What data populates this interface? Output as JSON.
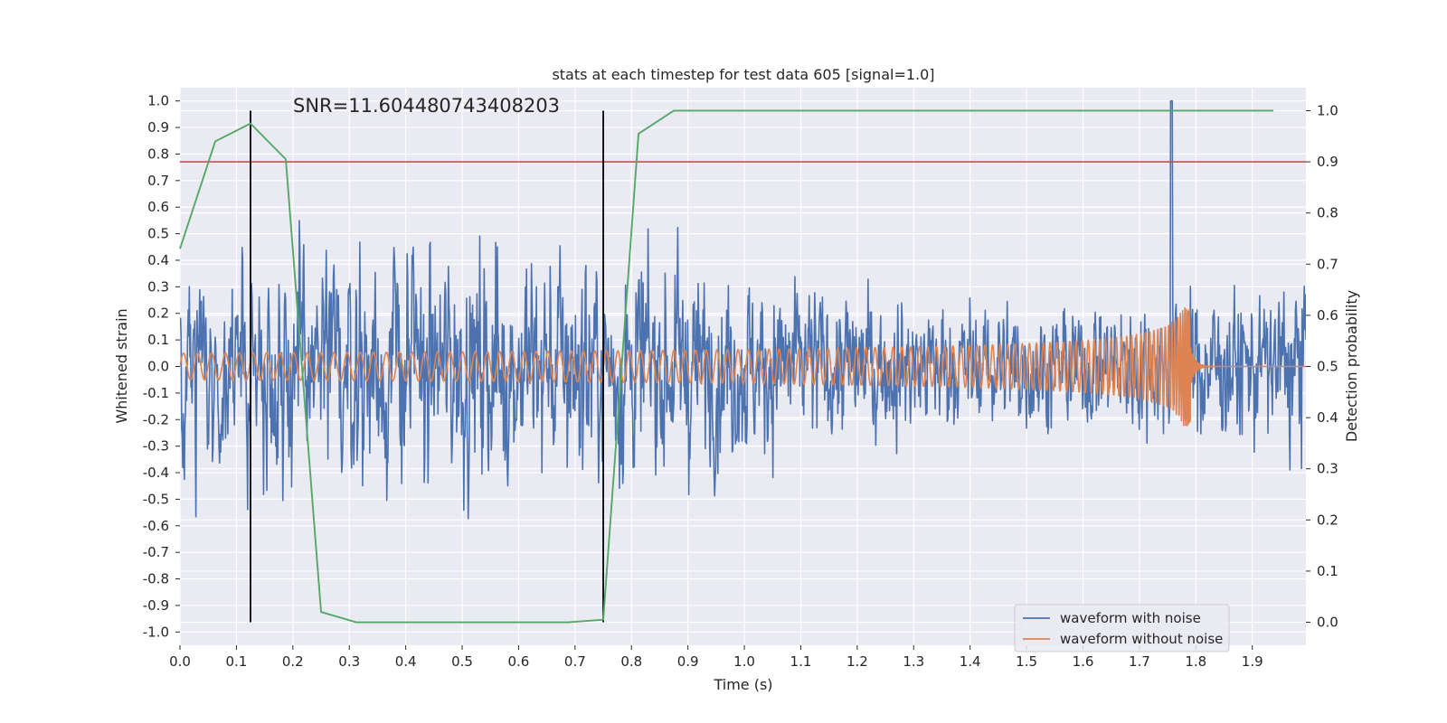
{
  "chart_data": {
    "type": "line",
    "title": "stats at each timestep for test data 605 [signal=1.0]",
    "xlabel": "Time (s)",
    "ylabel_left": "Whitened strain",
    "ylabel_right": "Detection probability",
    "annotation": "SNR=11.604480743408203",
    "xlim": [
      0.0,
      1.995
    ],
    "ylim_left": [
      -1.05,
      1.05
    ],
    "ylim_right": [
      -0.045,
      1.045
    ],
    "x_ticks": [
      "0.0",
      "0.1",
      "0.2",
      "0.3",
      "0.4",
      "0.5",
      "0.6",
      "0.7",
      "0.8",
      "0.9",
      "1.0",
      "1.1",
      "1.2",
      "1.3",
      "1.4",
      "1.5",
      "1.6",
      "1.7",
      "1.8",
      "1.9"
    ],
    "y_left_ticks": [
      "1.0",
      "0.9",
      "0.8",
      "0.7",
      "0.6",
      "0.5",
      "0.4",
      "0.3",
      "0.2",
      "0.1",
      "0.0",
      "-0.1",
      "-0.2",
      "-0.3",
      "-0.4",
      "-0.5",
      "-0.6",
      "-0.7",
      "-0.8",
      "-0.9",
      "-1.0"
    ],
    "y_right_ticks": [
      "1.0",
      "0.9",
      "0.8",
      "0.7",
      "0.6",
      "0.5",
      "0.4",
      "0.3",
      "0.2",
      "0.1",
      "0.0"
    ],
    "threshold": 0.9,
    "event_markers": [
      0.125,
      0.75
    ],
    "detection_probability": {
      "x": [
        0.0,
        0.0625,
        0.125,
        0.1875,
        0.25,
        0.3125,
        0.375,
        0.4375,
        0.5,
        0.5625,
        0.625,
        0.6875,
        0.75,
        0.8125,
        0.875,
        0.9375,
        1.0,
        1.0625,
        1.125,
        1.1875,
        1.25,
        1.3125,
        1.375,
        1.4375,
        1.5,
        1.5625,
        1.625,
        1.6875,
        1.75,
        1.8125,
        1.875,
        1.9375
      ],
      "y": [
        0.73,
        0.94,
        0.975,
        0.905,
        0.02,
        0.0,
        0.0,
        0.0,
        0.0,
        0.0,
        0.0,
        0.0,
        0.005,
        0.955,
        1.0,
        1.0,
        1.0,
        1.0,
        1.0,
        1.0,
        1.0,
        1.0,
        1.0,
        1.0,
        1.0,
        1.0,
        1.0,
        1.0,
        1.0,
        1.0,
        1.0,
        1.0
      ]
    },
    "series": [
      {
        "name": "waveform with noise",
        "color": "#4c72b0",
        "t_range": [
          0.0,
          1.995
        ],
        "amplitude": 0.35,
        "peak": 1.0
      },
      {
        "name": "waveform without noise",
        "color": "#dd8452",
        "t_range": [
          0.0,
          1.995
        ],
        "merger_time": 1.79,
        "base_amplitude": 0.05,
        "peak_amplitude": 0.3
      }
    ],
    "colors": {
      "background": "#eaeaf2",
      "grid": "#ffffff",
      "detection": "#55a868",
      "threshold": "#c44e52",
      "marker": "#000000"
    }
  }
}
